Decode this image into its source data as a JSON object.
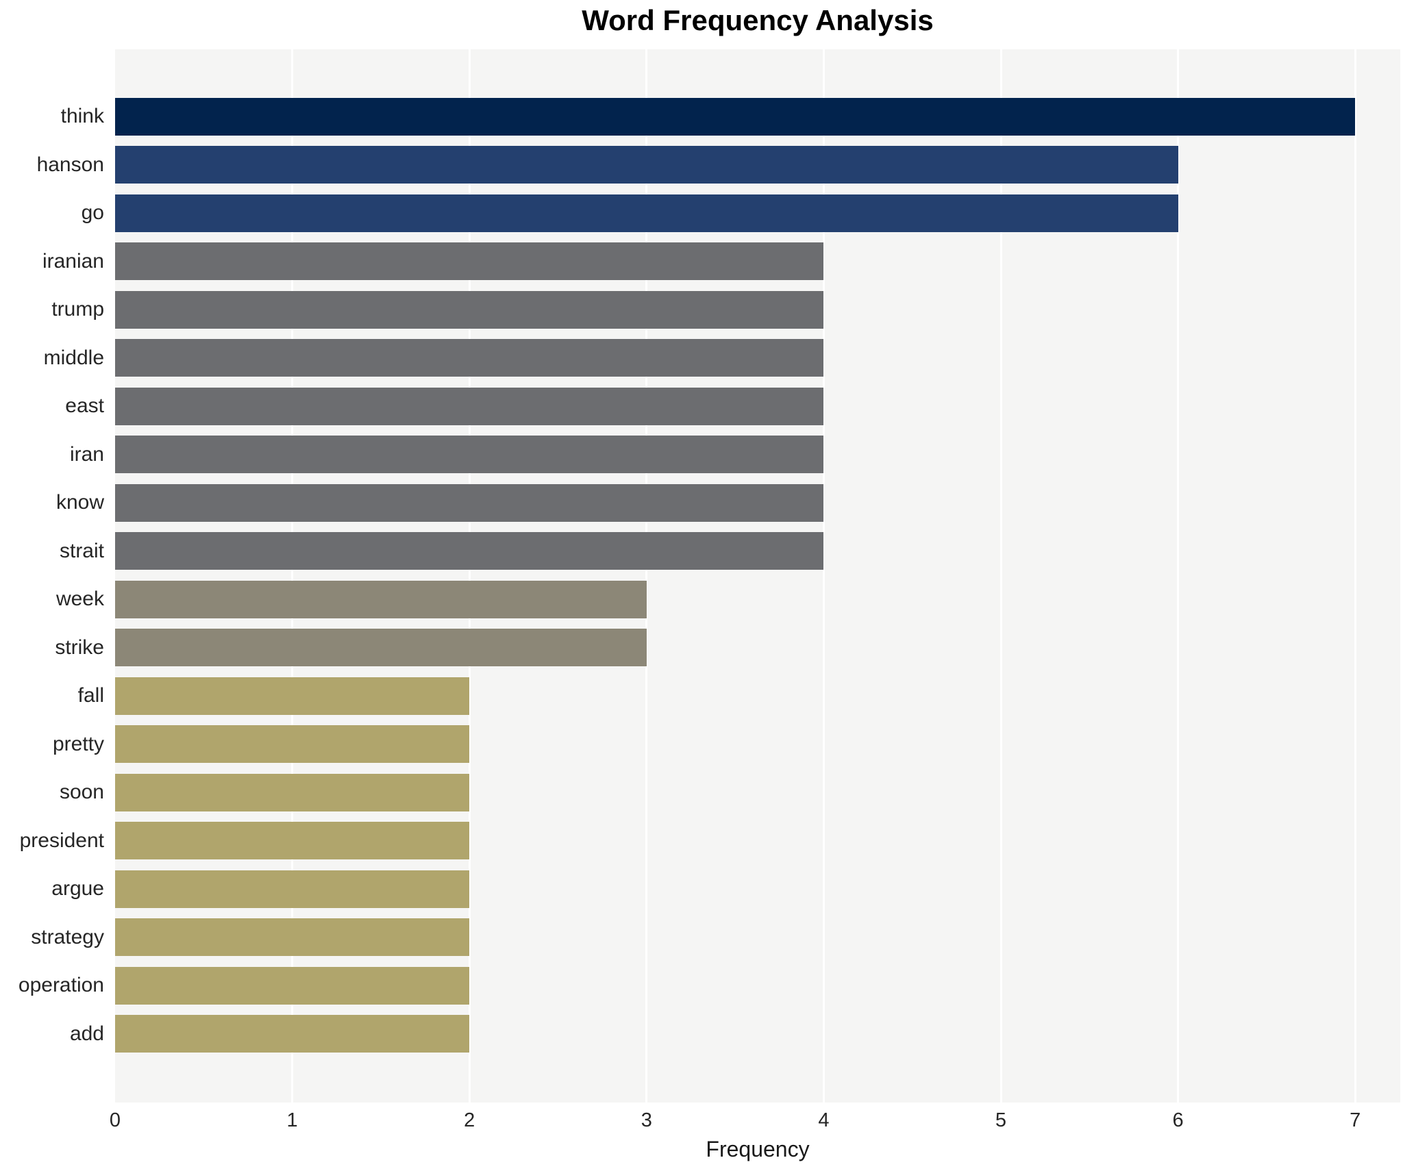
{
  "chart_data": {
    "type": "bar",
    "orientation": "horizontal",
    "title": "Word Frequency Analysis",
    "xlabel": "Frequency",
    "ylabel": "",
    "categories": [
      "think",
      "hanson",
      "go",
      "iranian",
      "trump",
      "middle",
      "east",
      "iran",
      "know",
      "strait",
      "week",
      "strike",
      "fall",
      "pretty",
      "soon",
      "president",
      "argue",
      "strategy",
      "operation",
      "add"
    ],
    "values": [
      7,
      6,
      6,
      4,
      4,
      4,
      4,
      4,
      4,
      4,
      3,
      3,
      2,
      2,
      2,
      2,
      2,
      2,
      2,
      2
    ],
    "bar_colors": [
      "#02234d",
      "#24406f",
      "#24406f",
      "#6c6d70",
      "#6c6d70",
      "#6c6d70",
      "#6c6d70",
      "#6c6d70",
      "#6c6d70",
      "#6c6d70",
      "#8c8777",
      "#8c8777",
      "#b0a56c",
      "#b0a56c",
      "#b0a56c",
      "#b0a56c",
      "#b0a56c",
      "#b0a56c",
      "#b0a56c",
      "#b0a56c"
    ],
    "x_ticks": [
      "0",
      "1",
      "2",
      "3",
      "4",
      "5",
      "6",
      "7"
    ],
    "xlim": [
      0,
      7.25
    ],
    "grid": true,
    "legend": false,
    "colors": {
      "plot_background": "#f5f5f4",
      "figure_background": "#ffffff",
      "gridline": "#ffffff",
      "tick_text": "#262626",
      "title_text": "#000000"
    }
  }
}
